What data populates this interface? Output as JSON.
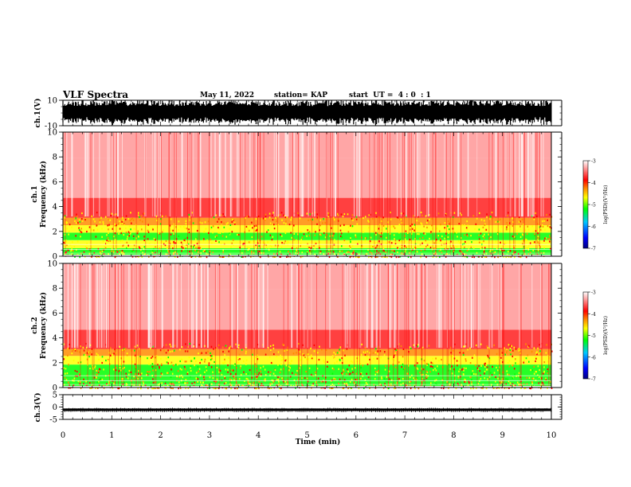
{
  "header": {
    "title": "VLF Spectra",
    "date": "May 11, 2022",
    "station": "station= KAP",
    "start": "start  UT =  4 : 0  : 1"
  },
  "colors": {
    "colorbar": [
      "#00007f",
      "#0000ff",
      "#00c8ff",
      "#00ff00",
      "#ffff00",
      "#ff8c00",
      "#ff0000",
      "#ffffff"
    ],
    "spectrogram_bg": "#ffffff",
    "trace": "#000000"
  },
  "chart_data": [
    {
      "type": "line",
      "panel": "ch1-waveform",
      "ylabel": "ch.1(V)",
      "ylim": [
        -10,
        10
      ],
      "yticks": [
        "10",
        "-10"
      ],
      "xlim": [
        0,
        10
      ],
      "series": [
        {
          "values": "dense noise waveform spanning roughly -10 to 10 V"
        }
      ]
    },
    {
      "type": "heatmap",
      "panel": "ch1-spectrogram",
      "ylabel": "ch.1\nFrequency  (kHz)",
      "ylim": [
        0,
        10
      ],
      "yticks": [
        "0",
        "2",
        "4",
        "6",
        "8",
        "10"
      ],
      "xlim": [
        0,
        10
      ],
      "band_profile_khz": [
        {
          "f": 0.3,
          "level": -4.8
        },
        {
          "f": 1.0,
          "level": -4.6
        },
        {
          "f": 1.6,
          "level": -4.7
        },
        {
          "f": 2.2,
          "level": -4.4
        },
        {
          "f": 2.8,
          "level": -4.2
        },
        {
          "f": 3.4,
          "level": -3.7
        },
        {
          "f": 6.0,
          "level": -3.2
        },
        {
          "f": 9.8,
          "level": -3.05
        }
      ],
      "colorbar": {
        "label": "log(PSD)(V²/Hz)",
        "range": [
          -7,
          -3
        ],
        "ticks": [
          "-3",
          "-4",
          "-5",
          "-6",
          "-7"
        ]
      }
    },
    {
      "type": "heatmap",
      "panel": "ch2-spectrogram",
      "ylabel": "ch.2\nFrequency  (kHz)",
      "ylim": [
        0,
        10
      ],
      "yticks": [
        "0",
        "2",
        "4",
        "6",
        "8",
        "10"
      ],
      "xlim": [
        0,
        10
      ],
      "band_profile_khz": [
        {
          "f": 0.3,
          "level": -4.9
        },
        {
          "f": 1.0,
          "level": -5.1
        },
        {
          "f": 1.5,
          "level": -4.9
        },
        {
          "f": 2.2,
          "level": -4.5
        },
        {
          "f": 2.9,
          "level": -4.0
        },
        {
          "f": 3.3,
          "level": -3.6
        },
        {
          "f": 6.0,
          "level": -3.2
        },
        {
          "f": 9.8,
          "level": -3.05
        }
      ],
      "colorbar": {
        "label": "log(PSD)(V²/Hz)",
        "range": [
          -7,
          -3
        ],
        "ticks": [
          "-3",
          "-4",
          "-5",
          "-6",
          "-7"
        ]
      }
    },
    {
      "type": "line",
      "panel": "ch3-waveform",
      "ylabel": "ch.3(V)",
      "ylim": [
        -5,
        5
      ],
      "yticks": [
        "5",
        "0",
        "-5"
      ],
      "xlim": [
        0,
        10
      ],
      "series": [
        {
          "values": "dense narrow band around -1 V"
        }
      ]
    }
  ],
  "xaxis": {
    "label": "Time  (min)",
    "ticks": [
      "0",
      "1",
      "2",
      "3",
      "4",
      "5",
      "6",
      "7",
      "8",
      "9",
      "10"
    ]
  }
}
